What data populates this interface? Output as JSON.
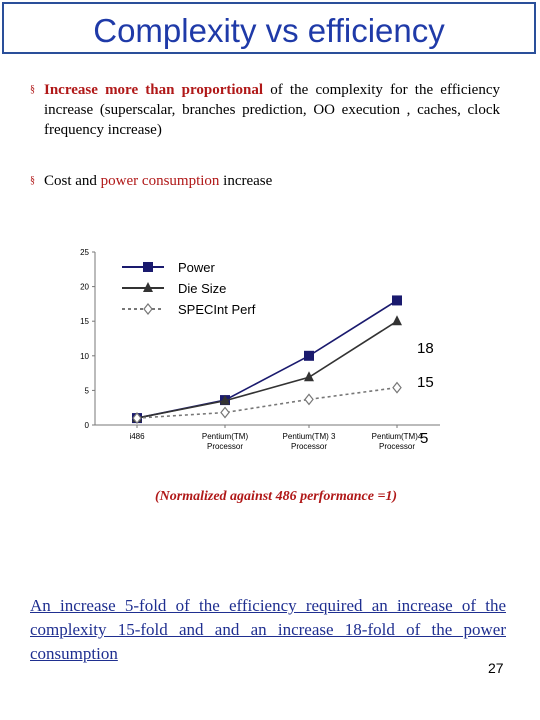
{
  "title": "Complexity vs efficiency",
  "bullets": [
    {
      "marker": "§",
      "highlight": "Increase more than proportional",
      "text": " of the complexity for the efficiency increase (superscalar, branches prediction, OO execution , caches, clock frequency increase)"
    },
    {
      "marker": "§",
      "before": "Cost and ",
      "highlight": "power consumption",
      "after": " increase"
    }
  ],
  "note": "(Normalized against 486 performance =1)",
  "conclusion": "An increase 5-fold of the efficiency required an increase of the complexity 15-fold and and an increase 18-fold of the power consumption",
  "page_number": "27",
  "colors": {
    "title": "#1f3aa8",
    "accent": "#b01818",
    "conclusion": "#1f2f90",
    "series_power": "#1a1a6e"
  },
  "chart_data": {
    "type": "line",
    "categories": [
      "i486",
      "Pentium(TM) Processor",
      "Pentium(TM) 3 Processor",
      "Pentium(TM)4 Processor"
    ],
    "category_labels": [
      [
        "i486"
      ],
      [
        "Pentium(TM)",
        "Processor"
      ],
      [
        "Pentium(TM) 3",
        "Processor"
      ],
      [
        "Pentium(TM)4",
        "Processor"
      ]
    ],
    "ylim": [
      0,
      25
    ],
    "yticks": [
      0,
      5,
      10,
      15,
      20,
      25
    ],
    "legend_position": "top-left",
    "series": [
      {
        "name": "Power",
        "values": [
          1,
          3.6,
          10,
          18
        ],
        "marker": "square",
        "line": "solid",
        "color": "#1a1a6e"
      },
      {
        "name": "Die Size",
        "values": [
          1,
          3.5,
          6.9,
          15
        ],
        "marker": "triangle",
        "line": "solid",
        "color": "#333333"
      },
      {
        "name": "SPECInt Perf",
        "values": [
          1,
          1.8,
          3.7,
          5.4
        ],
        "marker": "diamond",
        "line": "dotted",
        "color": "#777777"
      }
    ],
    "annotations": [
      "18",
      "15",
      "5"
    ]
  }
}
